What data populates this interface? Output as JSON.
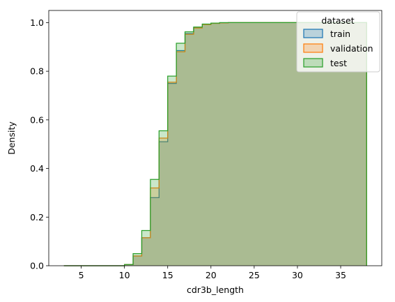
{
  "chart_data": {
    "type": "area",
    "xlabel": "cdr3b_length",
    "ylabel": "Density",
    "xlim": [
      1.25,
      39.75
    ],
    "ylim": [
      0,
      1.05
    ],
    "xticks": [
      5,
      10,
      15,
      20,
      25,
      30,
      35
    ],
    "yticks": [
      0.0,
      0.2,
      0.4,
      0.6,
      0.8,
      1.0
    ],
    "xtick_labels": [
      "5",
      "10",
      "15",
      "20",
      "25",
      "30",
      "35"
    ],
    "ytick_labels": [
      "0.0",
      "0.2",
      "0.4",
      "0.6",
      "0.8",
      "1.0"
    ],
    "bin_edges": [
      3,
      4,
      5,
      6,
      7,
      8,
      9,
      10,
      11,
      12,
      13,
      14,
      15,
      16,
      17,
      18,
      19,
      20,
      21,
      22,
      23,
      24,
      25,
      26,
      27,
      28,
      29,
      30,
      31,
      32,
      33,
      34,
      35,
      36,
      37,
      38
    ],
    "grid": false,
    "legend": {
      "title": "dataset",
      "placement": "top-right"
    },
    "series": [
      {
        "name": "train",
        "color": "#1f77b4",
        "values": [
          0.0,
          0.0,
          0.0,
          0.0,
          0.0,
          0.0,
          0.0,
          0.005,
          0.04,
          0.115,
          0.28,
          0.51,
          0.75,
          0.885,
          0.955,
          0.98,
          0.993,
          0.997,
          0.999,
          1.0,
          1.0,
          1.0,
          1.0,
          1.0,
          1.0,
          1.0,
          1.0,
          1.0,
          1.0,
          1.0,
          1.0,
          1.0,
          1.0,
          1.0,
          1.0
        ]
      },
      {
        "name": "validation",
        "color": "#ff7f0e",
        "values": [
          0.0,
          0.0,
          0.0,
          0.0,
          0.0,
          0.0,
          0.0,
          0.005,
          0.04,
          0.115,
          0.32,
          0.525,
          0.755,
          0.88,
          0.952,
          0.978,
          0.992,
          0.997,
          0.999,
          1.0,
          1.0,
          1.0,
          1.0,
          1.0,
          1.0,
          1.0,
          1.0,
          1.0,
          1.0,
          1.0,
          1.0,
          1.0,
          1.0,
          1.0,
          1.0
        ]
      },
      {
        "name": "test",
        "color": "#2ca02c",
        "values": [
          0.0,
          0.0,
          0.0,
          0.0,
          0.0,
          0.0,
          0.0,
          0.005,
          0.05,
          0.145,
          0.355,
          0.555,
          0.78,
          0.915,
          0.962,
          0.982,
          0.994,
          0.998,
          1.0,
          1.0,
          1.0,
          1.0,
          1.0,
          1.0,
          1.0,
          1.0,
          1.0,
          1.0,
          1.0,
          1.0,
          1.0,
          1.0,
          1.0,
          1.0,
          1.0
        ]
      }
    ]
  }
}
